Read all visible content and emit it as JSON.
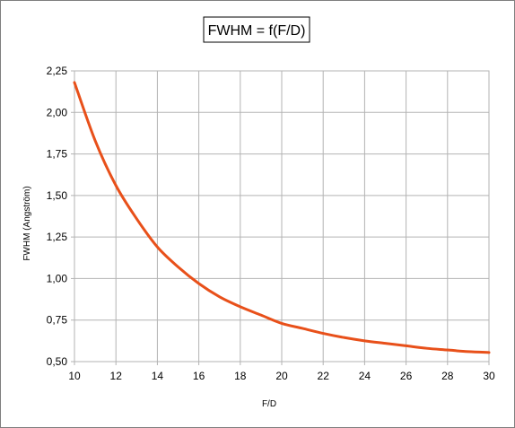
{
  "chart_data": {
    "type": "line",
    "title": "FWHM = f(F/D)",
    "xlabel": "F/D",
    "ylabel": "FWHM (Angström)",
    "xlim": [
      10,
      30
    ],
    "ylim": [
      0.5,
      2.25
    ],
    "x_ticks": [
      10,
      12,
      14,
      16,
      18,
      20,
      22,
      24,
      26,
      28,
      30
    ],
    "y_ticks": [
      0.5,
      0.75,
      1.0,
      1.25,
      1.5,
      1.75,
      2.0,
      2.25
    ],
    "y_tick_labels": [
      "0,50",
      "0,75",
      "1,00",
      "1,25",
      "1,50",
      "1,75",
      "2,00",
      "2,25"
    ],
    "grid": true,
    "legend": "none",
    "series": [
      {
        "color": "#e8501a",
        "x": [
          10,
          11,
          12,
          13,
          14,
          15,
          16,
          17,
          18,
          19,
          20,
          21,
          22,
          23,
          24,
          25,
          26,
          27,
          28,
          29,
          30
        ],
        "y": [
          2.18,
          1.83,
          1.56,
          1.36,
          1.19,
          1.07,
          0.97,
          0.89,
          0.83,
          0.78,
          0.73,
          0.7,
          0.67,
          0.645,
          0.625,
          0.61,
          0.595,
          0.58,
          0.57,
          0.56,
          0.555
        ]
      }
    ]
  }
}
